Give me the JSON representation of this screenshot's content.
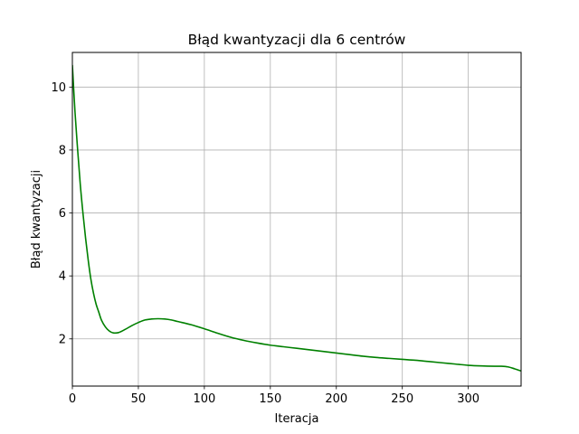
{
  "chart_data": {
    "type": "line",
    "title": "Błąd kwantyzacji dla 6 centrów",
    "xlabel": "Iteracja",
    "ylabel": "Błąd kwantyzacji",
    "xlim": [
      0,
      340
    ],
    "ylim": [
      0.5,
      11.1
    ],
    "xticks": [
      0,
      50,
      100,
      150,
      200,
      250,
      300
    ],
    "yticks": [
      2,
      4,
      6,
      8,
      10
    ],
    "grid": true,
    "series": [
      {
        "color": "#008000",
        "x": [
          0,
          2,
          4,
          6,
          8,
          10,
          12,
          14,
          16,
          18,
          20,
          22,
          25,
          28,
          31,
          35,
          40,
          45,
          50,
          55,
          60,
          65,
          70,
          75,
          80,
          90,
          100,
          110,
          120,
          130,
          140,
          150,
          160,
          170,
          180,
          190,
          200,
          210,
          220,
          230,
          240,
          250,
          260,
          270,
          280,
          290,
          300,
          310,
          320,
          325,
          330,
          335,
          340
        ],
        "y": [
          10.7,
          9.2,
          8.0,
          6.9,
          6.0,
          5.2,
          4.5,
          3.9,
          3.45,
          3.1,
          2.85,
          2.6,
          2.38,
          2.25,
          2.19,
          2.2,
          2.3,
          2.42,
          2.52,
          2.6,
          2.63,
          2.64,
          2.63,
          2.6,
          2.55,
          2.45,
          2.32,
          2.18,
          2.05,
          1.95,
          1.87,
          1.8,
          1.75,
          1.7,
          1.65,
          1.6,
          1.55,
          1.5,
          1.45,
          1.41,
          1.38,
          1.35,
          1.32,
          1.28,
          1.24,
          1.2,
          1.16,
          1.14,
          1.13,
          1.13,
          1.11,
          1.05,
          0.98
        ]
      }
    ]
  }
}
